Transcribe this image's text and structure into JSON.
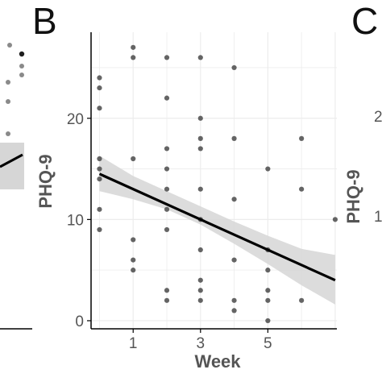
{
  "panel_labels": {
    "left": "",
    "center": "B",
    "right": "C"
  },
  "right_panel_partial": {
    "ylabel": "PHQ-9",
    "tick_1": "2",
    "tick_2": "1"
  },
  "chart_data": {
    "type": "scatter",
    "title": "",
    "xlabel": "Week",
    "ylabel": "PHQ-9",
    "xlim": [
      -0.25,
      7.05
    ],
    "ylim": [
      -0.8,
      28.5
    ],
    "x_ticks": [
      1,
      3,
      5
    ],
    "y_ticks": [
      0,
      10,
      20
    ],
    "x_tick_labels": [
      "1",
      "3",
      "5"
    ],
    "y_tick_labels": [
      "0",
      "10",
      "20"
    ],
    "grid": true,
    "colors": {
      "points": "#4a4a4a",
      "trend_line": "#000000",
      "confidence_band": "#d6d6d6",
      "grid": "#ececec",
      "axis": "#000000"
    },
    "points": [
      {
        "x": 0,
        "y": 24
      },
      {
        "x": 0,
        "y": 23
      },
      {
        "x": 0,
        "y": 21
      },
      {
        "x": 0,
        "y": 16
      },
      {
        "x": 0,
        "y": 15
      },
      {
        "x": 0,
        "y": 14
      },
      {
        "x": 0,
        "y": 11
      },
      {
        "x": 0,
        "y": 9
      },
      {
        "x": 1,
        "y": 27
      },
      {
        "x": 1,
        "y": 26
      },
      {
        "x": 1,
        "y": 16
      },
      {
        "x": 1,
        "y": 8
      },
      {
        "x": 1,
        "y": 6
      },
      {
        "x": 1,
        "y": 5
      },
      {
        "x": 2,
        "y": 26
      },
      {
        "x": 2,
        "y": 22
      },
      {
        "x": 2,
        "y": 17
      },
      {
        "x": 2,
        "y": 15
      },
      {
        "x": 2,
        "y": 13
      },
      {
        "x": 2,
        "y": 11
      },
      {
        "x": 2,
        "y": 9
      },
      {
        "x": 2,
        "y": 3
      },
      {
        "x": 2,
        "y": 2
      },
      {
        "x": 3,
        "y": 26
      },
      {
        "x": 3,
        "y": 20
      },
      {
        "x": 3,
        "y": 18
      },
      {
        "x": 3,
        "y": 17
      },
      {
        "x": 3,
        "y": 13
      },
      {
        "x": 3,
        "y": 10
      },
      {
        "x": 3,
        "y": 7
      },
      {
        "x": 3,
        "y": 4
      },
      {
        "x": 3,
        "y": 3
      },
      {
        "x": 3,
        "y": 2
      },
      {
        "x": 4,
        "y": 25
      },
      {
        "x": 4,
        "y": 18
      },
      {
        "x": 4,
        "y": 12
      },
      {
        "x": 4,
        "y": 6
      },
      {
        "x": 4,
        "y": 2
      },
      {
        "x": 4,
        "y": 1
      },
      {
        "x": 5,
        "y": 15
      },
      {
        "x": 5,
        "y": 7
      },
      {
        "x": 5,
        "y": 5
      },
      {
        "x": 5,
        "y": 3
      },
      {
        "x": 5,
        "y": 2
      },
      {
        "x": 5,
        "y": 0
      },
      {
        "x": 6,
        "y": 18
      },
      {
        "x": 6,
        "y": 13
      },
      {
        "x": 6,
        "y": 2
      },
      {
        "x": 7,
        "y": 10
      }
    ],
    "trend_line": {
      "x": [
        0,
        7
      ],
      "y": [
        14.5,
        4.0
      ]
    },
    "confidence_band": {
      "x": [
        0,
        1,
        2,
        3,
        4,
        5,
        6,
        7
      ],
      "lower": [
        12.8,
        12.0,
        11.0,
        9.5,
        7.6,
        5.6,
        3.5,
        1.6
      ],
      "upper": [
        16.3,
        14.3,
        12.8,
        11.3,
        9.8,
        8.4,
        7.1,
        6.5
      ]
    }
  }
}
